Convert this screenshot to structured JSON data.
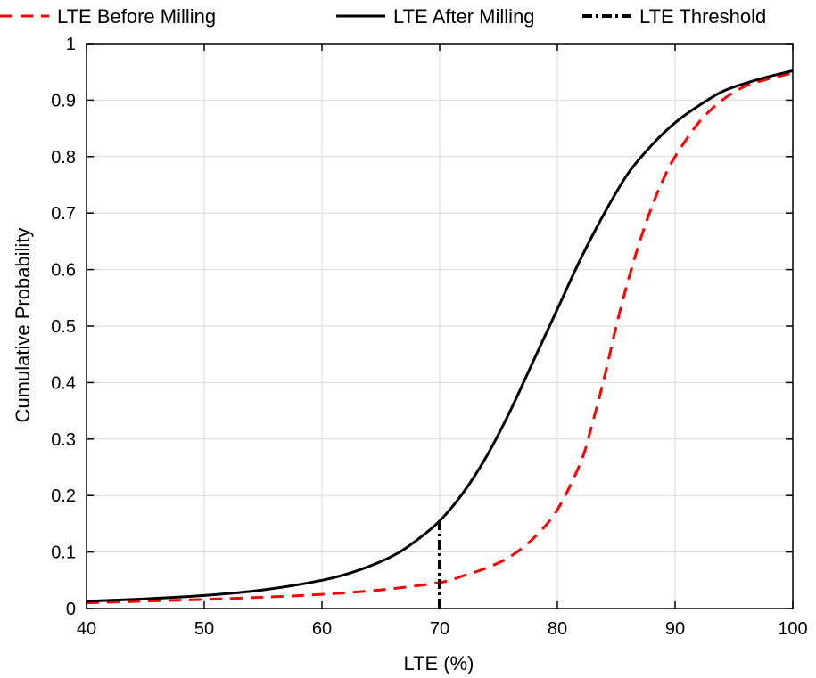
{
  "chart_data": {
    "type": "line",
    "xlabel": "LTE (%)",
    "ylabel": "Cumulative Probability",
    "xlim": [
      40,
      100
    ],
    "ylim": [
      0,
      1
    ],
    "xticks": [
      40,
      50,
      60,
      70,
      80,
      90,
      100
    ],
    "yticks": [
      0,
      0.1,
      0.2,
      0.3,
      0.4,
      0.5,
      0.6,
      0.7,
      0.8,
      0.9,
      1
    ],
    "ytick_labels": [
      "0",
      "0.1",
      "0.2",
      "0.3",
      "0.4",
      "0.5",
      "0.6",
      "0.7",
      "0.8",
      "0.9",
      "1"
    ],
    "grid": true,
    "legend_position": "top",
    "series": [
      {
        "name": "LTE Before Milling",
        "color": "#ff0000",
        "style": "dashed",
        "x": [
          40,
          45,
          50,
          55,
          60,
          65,
          70,
          72,
          74,
          76,
          78,
          80,
          82,
          83,
          84,
          85,
          86,
          87,
          88,
          89,
          90,
          92,
          94,
          96,
          98,
          100
        ],
        "y": [
          0.01,
          0.013,
          0.016,
          0.02,
          0.025,
          0.033,
          0.046,
          0.058,
          0.072,
          0.092,
          0.125,
          0.175,
          0.26,
          0.33,
          0.41,
          0.5,
          0.58,
          0.65,
          0.71,
          0.76,
          0.8,
          0.86,
          0.9,
          0.925,
          0.938,
          0.948
        ]
      },
      {
        "name": "LTE After Milling",
        "color": "#000000",
        "style": "solid",
        "x": [
          40,
          45,
          50,
          55,
          60,
          63,
          66,
          68,
          70,
          72,
          74,
          76,
          78,
          80,
          82,
          84,
          86,
          88,
          90,
          92,
          94,
          96,
          98,
          100
        ],
        "y": [
          0.013,
          0.017,
          0.023,
          0.033,
          0.05,
          0.067,
          0.093,
          0.12,
          0.155,
          0.205,
          0.27,
          0.35,
          0.44,
          0.53,
          0.62,
          0.7,
          0.77,
          0.82,
          0.86,
          0.89,
          0.915,
          0.93,
          0.942,
          0.952
        ]
      },
      {
        "name": "LTE Threshold",
        "color": "#000000",
        "style": "dashdot",
        "x": [
          70,
          70
        ],
        "y": [
          0,
          0.155
        ]
      }
    ]
  }
}
